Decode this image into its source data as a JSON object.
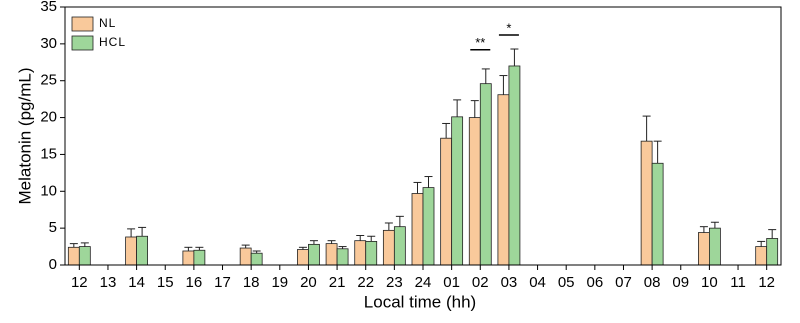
{
  "chart_data": {
    "type": "bar",
    "categories": [
      "12",
      "13",
      "14",
      "15",
      "16",
      "17",
      "18",
      "19",
      "20",
      "21",
      "22",
      "23",
      "24",
      "01",
      "02",
      "03",
      "04",
      "05",
      "06",
      "07",
      "08",
      "09",
      "10",
      "11",
      "12"
    ],
    "series": [
      {
        "name": "NL",
        "color": "#f9c99b",
        "values": [
          2.4,
          null,
          3.8,
          null,
          1.9,
          null,
          2.3,
          null,
          2.1,
          2.9,
          3.3,
          4.7,
          9.7,
          17.2,
          20.0,
          23.1,
          null,
          null,
          null,
          null,
          16.8,
          null,
          4.4,
          null,
          2.5
        ],
        "errors": [
          0.5,
          null,
          1.1,
          null,
          0.5,
          null,
          0.4,
          null,
          0.3,
          0.4,
          0.7,
          1.0,
          1.5,
          2.0,
          2.3,
          2.6,
          null,
          null,
          null,
          null,
          3.4,
          null,
          0.8,
          null,
          0.7
        ]
      },
      {
        "name": "HCL",
        "color": "#9ed69a",
        "values": [
          2.5,
          null,
          3.9,
          null,
          2.0,
          null,
          1.6,
          null,
          2.8,
          2.2,
          3.2,
          5.2,
          10.5,
          20.1,
          24.6,
          27.0,
          null,
          null,
          null,
          null,
          13.8,
          null,
          5.0,
          null,
          3.6
        ],
        "errors": [
          0.5,
          null,
          1.2,
          null,
          0.4,
          null,
          0.3,
          null,
          0.5,
          0.3,
          0.7,
          1.4,
          1.5,
          2.3,
          2.0,
          2.3,
          null,
          null,
          null,
          null,
          3.0,
          null,
          0.8,
          null,
          1.2
        ]
      }
    ],
    "xlabel": "Local time (hh)",
    "ylabel": "Melatonin (pg/mL)",
    "ylim": [
      0,
      35
    ],
    "yticks": [
      0,
      5,
      10,
      15,
      20,
      25,
      30,
      35
    ],
    "annotations": [
      {
        "text": "**",
        "x": "02",
        "y": 29.2
      },
      {
        "text": "*",
        "x": "03",
        "y": 31.2
      }
    ],
    "legend": "upper-left"
  }
}
